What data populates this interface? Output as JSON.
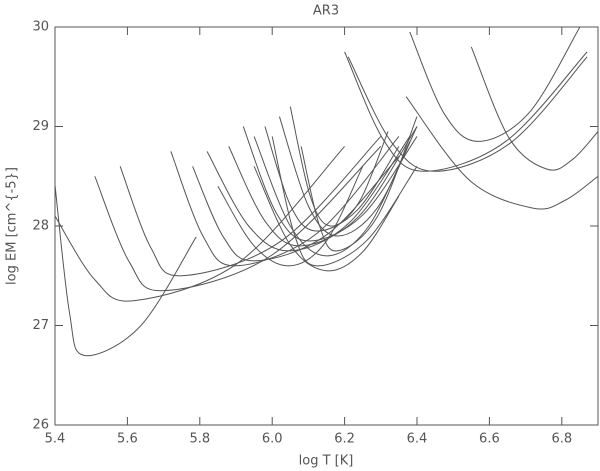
{
  "chart_data": {
    "type": "line",
    "title": "AR3",
    "xlabel": "log T [K]",
    "ylabel": "log EM [cm^{-5}]",
    "xlim": [
      5.4,
      6.9
    ],
    "ylim": [
      26,
      30
    ],
    "xticks": [
      5.4,
      5.6,
      5.8,
      {
        "value": 6,
        "label": "6.0"
      },
      6.2,
      6.4,
      6.6,
      6.8
    ],
    "yticks": [
      26,
      27,
      28,
      29,
      30
    ],
    "series": [
      {
        "color": "#555555",
        "x": [
          5.4,
          5.44,
          5.48,
          5.635,
          5.79
        ],
        "values": [
          28.41,
          27.13,
          26.7,
          26.99,
          27.89
        ]
      },
      {
        "color": "#555555",
        "x": [
          5.4,
          5.51,
          5.62,
          5.91,
          6.2
        ],
        "values": [
          28.1,
          27.46,
          27.25,
          27.64,
          28.8
        ]
      },
      {
        "color": "#555555",
        "x": [
          5.51,
          5.605,
          5.7,
          6.0,
          6.3
        ],
        "values": [
          28.5,
          27.64,
          27.35,
          27.71,
          28.8
        ]
      },
      {
        "color": "#555555",
        "x": [
          5.58,
          5.665,
          5.75,
          6.025,
          6.3
        ],
        "values": [
          28.6,
          27.78,
          27.5,
          27.85,
          28.9
        ]
      },
      {
        "color": "#555555",
        "x": [
          5.72,
          5.81,
          5.9,
          6.125,
          6.35
        ],
        "values": [
          28.75,
          27.89,
          27.6,
          27.93,
          28.9
        ]
      },
      {
        "color": "#555555",
        "x": [
          5.78,
          5.865,
          5.95,
          6.15,
          6.35
        ],
        "values": [
          28.6,
          27.89,
          27.65,
          27.91,
          28.7
        ]
      },
      {
        "color": "#555555",
        "x": [
          5.82,
          5.935,
          6.05,
          6.215,
          6.38
        ],
        "values": [
          28.75,
          28.0,
          27.75,
          28.04,
          28.9
        ]
      },
      {
        "color": "#555555",
        "x": [
          5.88,
          5.98,
          6.08,
          6.24,
          6.4
        ],
        "values": [
          28.8,
          28.05,
          27.8,
          28.1,
          29.0
        ]
      },
      {
        "color": "#555555",
        "x": [
          5.92,
          6.01,
          6.1,
          6.25,
          6.4
        ],
        "values": [
          29.0,
          28.14,
          27.85,
          28.11,
          28.9
        ]
      },
      {
        "color": "#555555",
        "x": [
          5.95,
          6.05,
          6.15,
          6.265,
          6.38
        ],
        "values": [
          28.9,
          28.0,
          27.7,
          27.99,
          28.85
        ]
      },
      {
        "color": "#555555",
        "x": [
          5.98,
          6.05,
          6.12,
          6.235,
          6.35
        ],
        "values": [
          29.0,
          28.21,
          27.95,
          28.16,
          28.8
        ]
      },
      {
        "color": "#555555",
        "x": [
          6.0,
          6.06,
          6.12,
          6.26,
          6.4
        ],
        "values": [
          28.9,
          27.93,
          27.6,
          27.85,
          28.6
        ]
      },
      {
        "color": "#555555",
        "x": [
          6.02,
          6.1,
          6.18,
          6.29,
          6.4
        ],
        "values": [
          29.1,
          28.2,
          27.9,
          28.18,
          29.0
        ]
      },
      {
        "color": "#555555",
        "x": [
          6.05,
          6.105,
          6.16,
          6.24,
          6.32
        ],
        "values": [
          29.2,
          28.3,
          28.0,
          28.24,
          28.95
        ]
      },
      {
        "color": "#555555",
        "x": [
          5.85,
          5.95,
          6.05,
          6.15,
          6.25
        ],
        "values": [
          28.4,
          27.8,
          27.6,
          27.85,
          28.6
        ]
      },
      {
        "color": "#555555",
        "x": [
          6.08,
          6.13,
          6.18,
          6.29,
          6.4
        ],
        "values": [
          28.8,
          28.01,
          27.75,
          28.09,
          29.1
        ]
      },
      {
        "color": "#555555",
        "x": [
          5.95,
          6.05,
          6.15,
          6.25,
          6.35
        ],
        "values": [
          28.6,
          27.81,
          27.55,
          27.74,
          28.3
        ]
      },
      {
        "color": "#555555",
        "x": [
          6.2,
          6.31,
          6.42,
          6.645,
          6.87
        ],
        "values": [
          29.75,
          28.85,
          28.55,
          28.85,
          29.75
        ]
      },
      {
        "color": "#555555",
        "x": [
          6.21,
          6.33,
          6.45,
          6.66,
          6.87
        ],
        "values": [
          29.7,
          28.84,
          28.55,
          28.84,
          29.7
        ]
      },
      {
        "color": "#555555",
        "x": [
          6.37,
          6.545,
          6.72,
          6.81,
          6.9
        ],
        "values": [
          29.3,
          28.46,
          28.18,
          28.26,
          28.5
        ]
      },
      {
        "color": "#555555",
        "x": [
          6.55,
          6.655,
          6.76,
          6.83,
          6.9
        ],
        "values": [
          29.8,
          28.88,
          28.57,
          28.67,
          28.95
        ]
      },
      {
        "color": "#555555",
        "x": [
          6.38,
          6.475,
          6.57,
          6.71,
          6.85
        ],
        "values": [
          29.95,
          29.13,
          28.85,
          29.14,
          30.0
        ]
      }
    ]
  }
}
